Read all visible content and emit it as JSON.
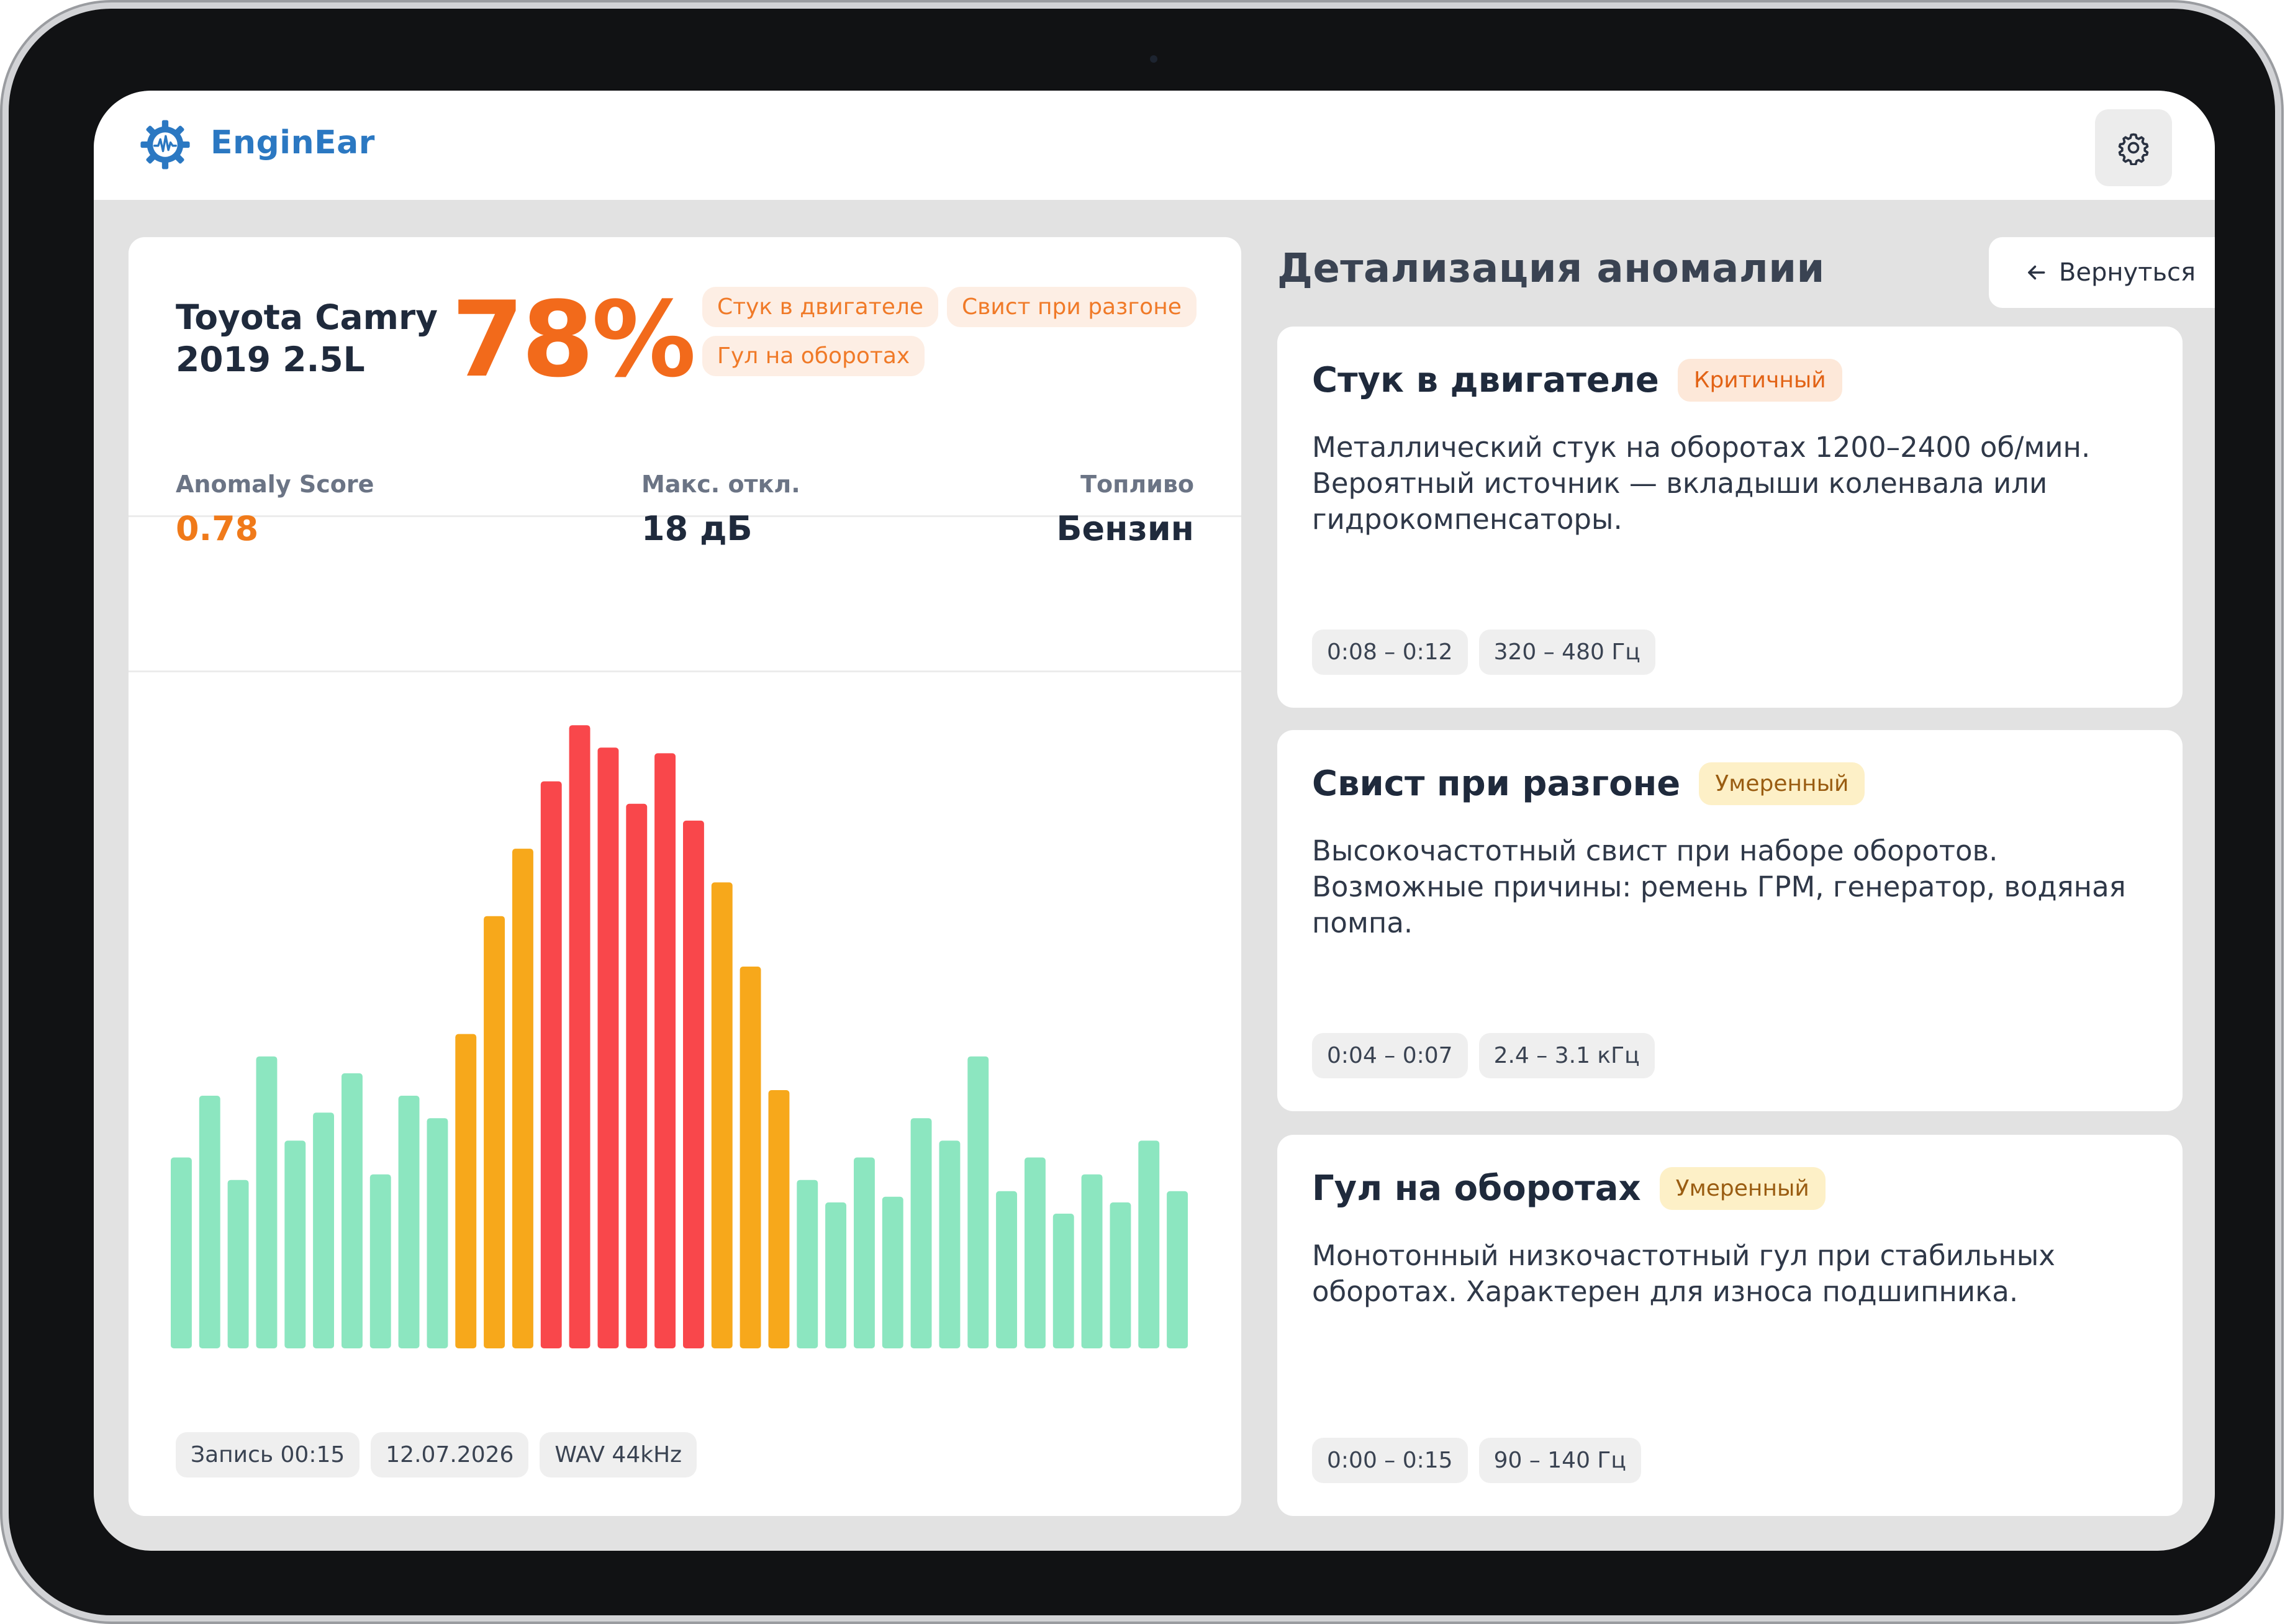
{
  "app": {
    "name": "EnginEar"
  },
  "summary": {
    "car_name": "Toyota Camry\n2019 2.5L",
    "anomaly_percent": "78%",
    "tags": [
      "Стук в двигателе",
      "Свист при разгоне",
      "Гул на оборотах"
    ]
  },
  "metrics": {
    "anomaly_score": {
      "label": "Anomaly Score",
      "value": "0.78"
    },
    "max_dev": {
      "label": "Макс. откл.",
      "value": "18 дБ"
    },
    "fuel": {
      "label": "Топливо",
      "value": "Бензин"
    }
  },
  "chart_data": {
    "type": "bar",
    "values": [
      34,
      45,
      30,
      52,
      37,
      42,
      49,
      31,
      45,
      41,
      56,
      77,
      89,
      101,
      111,
      107,
      97,
      106,
      94,
      83,
      68,
      46,
      30,
      26,
      34,
      27,
      41,
      37,
      52,
      28,
      34,
      24,
      31,
      26,
      37,
      28
    ],
    "levels": [
      "ok",
      "ok",
      "ok",
      "ok",
      "ok",
      "ok",
      "ok",
      "ok",
      "ok",
      "ok",
      "warn",
      "warn",
      "warn",
      "crit",
      "crit",
      "crit",
      "crit",
      "crit",
      "crit",
      "warn",
      "warn",
      "warn",
      "ok",
      "ok",
      "ok",
      "ok",
      "ok",
      "ok",
      "ok",
      "ok",
      "ok",
      "ok",
      "ok",
      "ok",
      "ok",
      "ok"
    ],
    "colors": {
      "ok": "#8ce6c0",
      "warn": "#f7a81b",
      "crit": "#f9474b"
    },
    "ylim": [
      0,
      115
    ]
  },
  "recording": {
    "duration": "Запись 00:15",
    "date": "12.07.2026",
    "format": "WAV 44kHz"
  },
  "details": {
    "title": "Детализация аномалии",
    "back_label": "Вернуться",
    "items": [
      {
        "title": "Стук в двигателе",
        "badge": "Критичный",
        "description": "Металлический стук на оборотах 1200–2400 об/мин. Вероятный источник — вкладыши коленвала или гидрокомпенсаторы.",
        "time": "0:08 – 0:12",
        "freq": "320 – 480 Гц"
      },
      {
        "title": "Свист при разгоне",
        "badge": "Умеренный",
        "description": "Высокочастотный свист при наборе оборотов. Возможные причины: ремень ГРМ, генератор, водяная помпа.",
        "time": "0:04 – 0:07",
        "freq": "2.4 – 3.1 кГц"
      },
      {
        "title": "Гул на оборотах",
        "badge": "Умеренный",
        "description": "Монотонный низкочастотный гул при стабильных оборотах. Характерен для износа подшипника.",
        "time": "0:00 – 0:15",
        "freq": "90 – 140 Гц"
      }
    ]
  }
}
